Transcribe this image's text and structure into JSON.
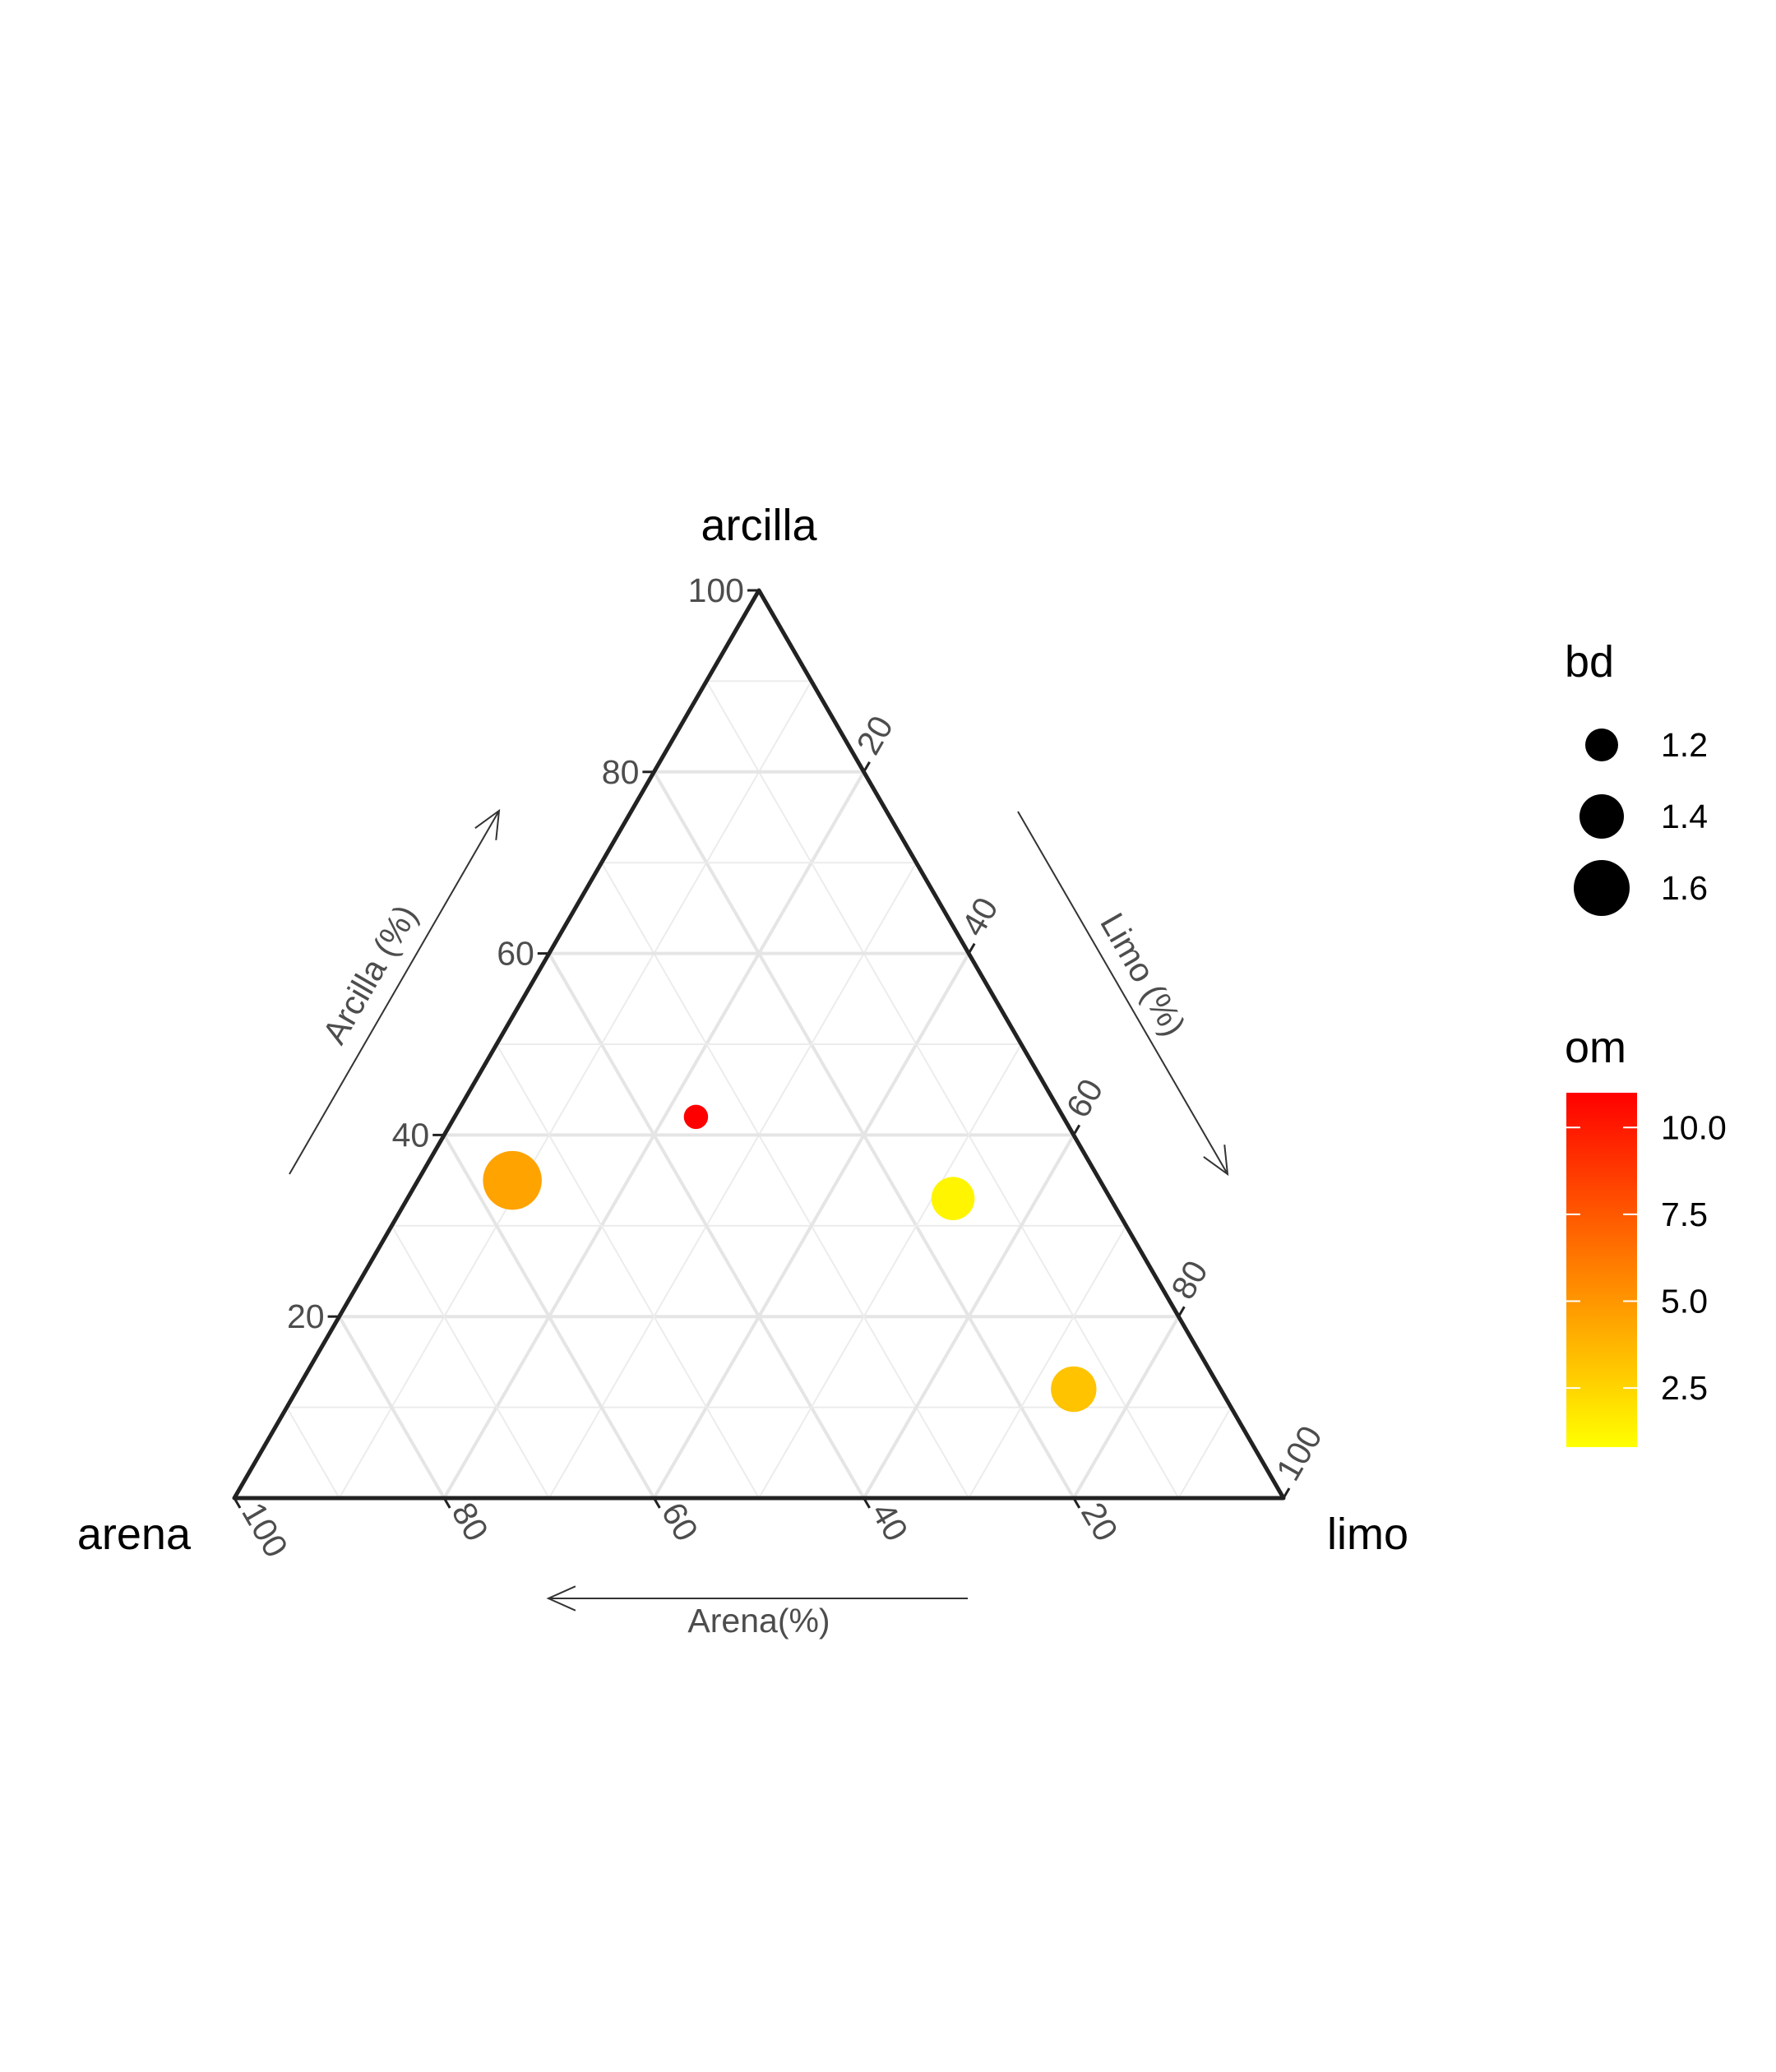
{
  "chart_data": {
    "type": "scatter",
    "subtype": "ternary",
    "axes": {
      "top": {
        "apex_label": "arcilla",
        "arrow_label": "Arcilla (%)",
        "ticks": [
          "20",
          "40",
          "60",
          "80",
          "100"
        ]
      },
      "right": {
        "apex_label": "limo",
        "arrow_label": "Limo (%)",
        "ticks": [
          "20",
          "40",
          "60",
          "80",
          "100"
        ]
      },
      "left": {
        "apex_label": "arena",
        "arrow_label": "Arena(%)",
        "ticks": [
          "20",
          "40",
          "60",
          "80",
          "100"
        ]
      }
    },
    "grid": true,
    "points": [
      {
        "arena": 35,
        "arcilla": 42,
        "limo": 23,
        "bd": 1.05,
        "om": 11.0
      },
      {
        "arena": 56,
        "arcilla": 35,
        "limo": 9,
        "bd": 1.65,
        "om": 4.5
      },
      {
        "arena": 15,
        "arcilla": 33,
        "limo": 52,
        "bd": 1.38,
        "om": 1.2
      },
      {
        "arena": 14,
        "arcilla": 12,
        "limo": 74,
        "bd": 1.42,
        "om": 3.2
      }
    ],
    "legend": {
      "position": "right",
      "size": {
        "title": "bd",
        "breaks": [
          1.2,
          1.4,
          1.6
        ],
        "labels": [
          "1.2",
          "1.4",
          "1.6"
        ]
      },
      "color": {
        "title": "om",
        "range": [
          0.8,
          11.0
        ],
        "breaks": [
          10.0,
          7.5,
          5.0,
          2.5
        ],
        "labels": [
          "10.0",
          "7.5",
          "5.0",
          "2.5"
        ],
        "low_color": "#FFFF00",
        "high_color": "#FF0000"
      }
    },
    "colors": {
      "axis_line": "#222222",
      "grid_major": "#e5e5e5",
      "grid_minor": "#ececec",
      "tick_text": "#4d4d4d"
    }
  }
}
